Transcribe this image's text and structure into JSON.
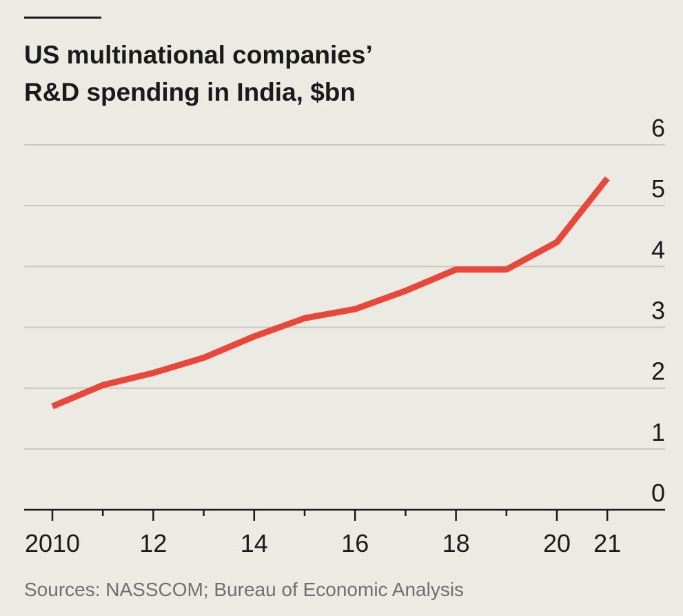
{
  "chart_data": {
    "type": "line",
    "title_lines": [
      "US multinational companies’",
      "R&D spending in India, $bn"
    ],
    "x": [
      2010,
      2011,
      2012,
      2013,
      2014,
      2015,
      2016,
      2017,
      2018,
      2019,
      2020,
      2021
    ],
    "x_tick_labels": [
      {
        "x": 2010,
        "label": "2010"
      },
      {
        "x": 2012,
        "label": "12"
      },
      {
        "x": 2014,
        "label": "14"
      },
      {
        "x": 2016,
        "label": "16"
      },
      {
        "x": 2018,
        "label": "18"
      },
      {
        "x": 2020,
        "label": "20"
      },
      {
        "x": 2021,
        "label": "21"
      }
    ],
    "x_minor_ticks": [
      2011,
      2013,
      2015,
      2017,
      2019
    ],
    "series": [
      {
        "values": [
          1.7,
          2.05,
          2.25,
          2.5,
          2.85,
          3.15,
          3.3,
          3.6,
          3.95,
          3.95,
          4.4,
          5.45
        ],
        "color": "#e8473a"
      }
    ],
    "ylim": [
      0,
      6
    ],
    "y_ticks": [
      0,
      1,
      2,
      3,
      4,
      5,
      6
    ],
    "y_axis_side": "right",
    "grid": true,
    "xlabel": "",
    "ylabel": "",
    "source": "Sources: NASSCOM; Bureau of Economic Analysis"
  },
  "colors": {
    "background": "#ecebe3",
    "accent_rule": "#1a1a1a",
    "series": "#e8473a",
    "grid": "#c9c8c0",
    "source_text": "#6f6f6f"
  }
}
